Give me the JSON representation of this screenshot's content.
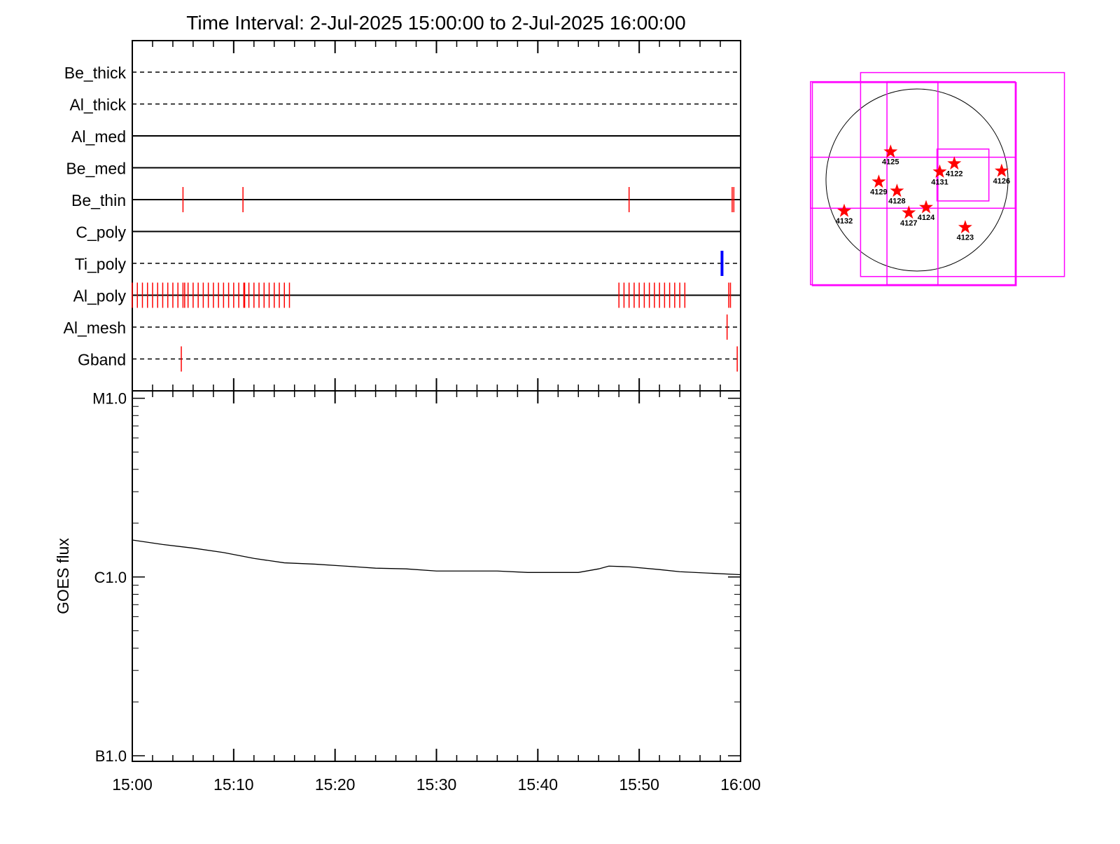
{
  "chart_data": [
    {
      "type": "event",
      "title": "Time Interval:  2-Jul-2025 15:00:00 to  2-Jul-2025 16:00:00",
      "xlim": [
        "15:00",
        "16:00"
      ],
      "xticks": [
        "15:00",
        "15:10",
        "15:20",
        "15:30",
        "15:40",
        "15:50",
        "16:00"
      ],
      "xminorticks": [
        "15:02",
        "15:04",
        "15:06",
        "15:08",
        "15:12",
        "15:14",
        "15:16",
        "15:18",
        "15:22",
        "15:24",
        "15:26",
        "15:28",
        "15:32",
        "15:34",
        "15:36",
        "15:38",
        "15:42",
        "15:44",
        "15:46",
        "15:48",
        "15:52",
        "15:54",
        "15:56",
        "15:58"
      ],
      "rows": [
        {
          "name": "Be_thick",
          "line_style": "dashed",
          "color": "#ff0000",
          "events": []
        },
        {
          "name": "Al_thick",
          "line_style": "dashed",
          "color": "#ff0000",
          "events": []
        },
        {
          "name": "Al_med",
          "line_style": "solid",
          "color": "#ff0000",
          "events": []
        },
        {
          "name": "Be_med",
          "line_style": "solid",
          "color": "#ff0000",
          "events": []
        },
        {
          "name": "Be_thin",
          "line_style": "solid",
          "color": "#ff0000",
          "events": [
            "15:05:00",
            "15:10:55",
            "15:49:00",
            "15:59:10",
            "15:59:20"
          ]
        },
        {
          "name": "C_poly",
          "line_style": "solid",
          "color": "#ff0000",
          "events": []
        },
        {
          "name": "Ti_poly",
          "line_style": "dashed",
          "color": "#0000ff",
          "events": [
            "15:58:10"
          ]
        },
        {
          "name": "Al_poly",
          "line_style": "solid",
          "color": "#ff0000",
          "events": [
            "15:00:00",
            "15:00:30",
            "15:01:00",
            "15:01:30",
            "15:02:00",
            "15:02:30",
            "15:03:00",
            "15:03:30",
            "15:04:00",
            "15:04:30",
            "15:05:00",
            "15:05:10",
            "15:05:30",
            "15:06:00",
            "15:06:30",
            "15:07:00",
            "15:07:30",
            "15:08:00",
            "15:08:30",
            "15:09:00",
            "15:09:30",
            "15:10:00",
            "15:10:30",
            "15:11:00",
            "15:11:05",
            "15:11:30",
            "15:12:00",
            "15:12:30",
            "15:13:00",
            "15:13:30",
            "15:14:00",
            "15:14:30",
            "15:15:00",
            "15:15:30",
            "15:48:00",
            "15:48:30",
            "15:49:00",
            "15:49:30",
            "15:50:00",
            "15:50:30",
            "15:51:00",
            "15:51:30",
            "15:52:00",
            "15:52:30",
            "15:53:00",
            "15:53:30",
            "15:54:00",
            "15:54:30",
            "15:58:50",
            "15:59:00"
          ]
        },
        {
          "name": "Al_mesh",
          "line_style": "dashed",
          "color": "#ff0000",
          "events": [
            "15:58:40"
          ]
        },
        {
          "name": "Gband",
          "line_style": "dashed",
          "color": "#ff0000",
          "events": [
            "15:04:50",
            "15:59:40"
          ]
        }
      ]
    },
    {
      "type": "line",
      "ylabel": "GOES flux",
      "log_scale": true,
      "color": "#000000",
      "x": [
        "15:00",
        "15:03",
        "15:06",
        "15:09",
        "15:12",
        "15:15",
        "15:18",
        "15:21",
        "15:24",
        "15:27",
        "15:30",
        "15:33",
        "15:36",
        "15:39",
        "15:42",
        "15:44",
        "15:46",
        "15:47",
        "15:49",
        "15:52",
        "15:54",
        "15:57",
        "16:00"
      ],
      "values": [
        1.61e-06,
        1.52e-06,
        1.45e-06,
        1.37e-06,
        1.27e-06,
        1.2e-06,
        1.18e-06,
        1.15e-06,
        1.12e-06,
        1.11e-06,
        1.08e-06,
        1.08e-06,
        1.08e-06,
        1.06e-06,
        1.06e-06,
        1.06e-06,
        1.11e-06,
        1.15e-06,
        1.14e-06,
        1.1e-06,
        1.07e-06,
        1.05e-06,
        1.03e-06
      ],
      "xlim": [
        "15:00",
        "16:00"
      ],
      "xticks": [
        "15:00",
        "15:10",
        "15:20",
        "15:30",
        "15:40",
        "15:50",
        "16:00"
      ],
      "xminorticks": [
        "15:02",
        "15:04",
        "15:06",
        "15:08",
        "15:12",
        "15:14",
        "15:16",
        "15:18",
        "15:22",
        "15:24",
        "15:26",
        "15:28",
        "15:32",
        "15:34",
        "15:36",
        "15:38",
        "15:42",
        "15:44",
        "15:46",
        "15:48",
        "15:52",
        "15:54",
        "15:56",
        "15:58"
      ],
      "ylim": [
        9.3e-08,
        1.1e-05
      ],
      "yticks": [
        {
          "value": 1e-07,
          "label": "B1.0"
        },
        {
          "value": 1e-06,
          "label": "C1.0"
        },
        {
          "value": 1e-05,
          "label": "M1.0"
        }
      ],
      "yminorticks": [
        2e-07,
        3e-07,
        4e-07,
        5e-07,
        6e-07,
        7e-07,
        8e-07,
        9e-07,
        2e-06,
        3e-06,
        4e-06,
        5e-06,
        6e-06,
        7e-06,
        8e-06,
        9e-06
      ]
    },
    {
      "type": "map",
      "box_color": "#ff00ff",
      "marker_color": "#ff0000",
      "points": [
        {
          "label": "4125",
          "x": -0.29,
          "y": 0.31
        },
        {
          "label": "4122",
          "x": 0.41,
          "y": 0.18
        },
        {
          "label": "4131",
          "x": 0.25,
          "y": 0.09
        },
        {
          "label": "4126",
          "x": 0.93,
          "y": 0.1
        },
        {
          "label": "4129",
          "x": -0.42,
          "y": -0.02
        },
        {
          "label": "4128",
          "x": -0.22,
          "y": -0.12
        },
        {
          "label": "4124",
          "x": 0.1,
          "y": -0.3
        },
        {
          "label": "4127",
          "x": -0.09,
          "y": -0.36
        },
        {
          "label": "4132",
          "x": -0.8,
          "y": -0.34
        },
        {
          "label": "4123",
          "x": 0.53,
          "y": -0.52
        }
      ],
      "boxes": [
        {
          "x": [
            -0.62,
            1.62
          ],
          "y": [
            -1.06,
            1.18
          ]
        },
        {
          "x": [
            -1.17,
            1.08
          ],
          "y": [
            -1.15,
            1.08
          ]
        },
        {
          "x": [
            -1.15,
            1.09
          ],
          "y": [
            -1.16,
            1.07
          ]
        },
        {
          "x": [
            -0.33,
            0.23
          ],
          "y": [
            -1.15,
            1.08
          ]
        },
        {
          "x": [
            -1.17,
            1.08
          ],
          "y": [
            -0.31,
            0.25
          ]
        },
        {
          "x": [
            0.22,
            0.79
          ],
          "y": [
            -0.23,
            0.34
          ]
        }
      ]
    }
  ]
}
